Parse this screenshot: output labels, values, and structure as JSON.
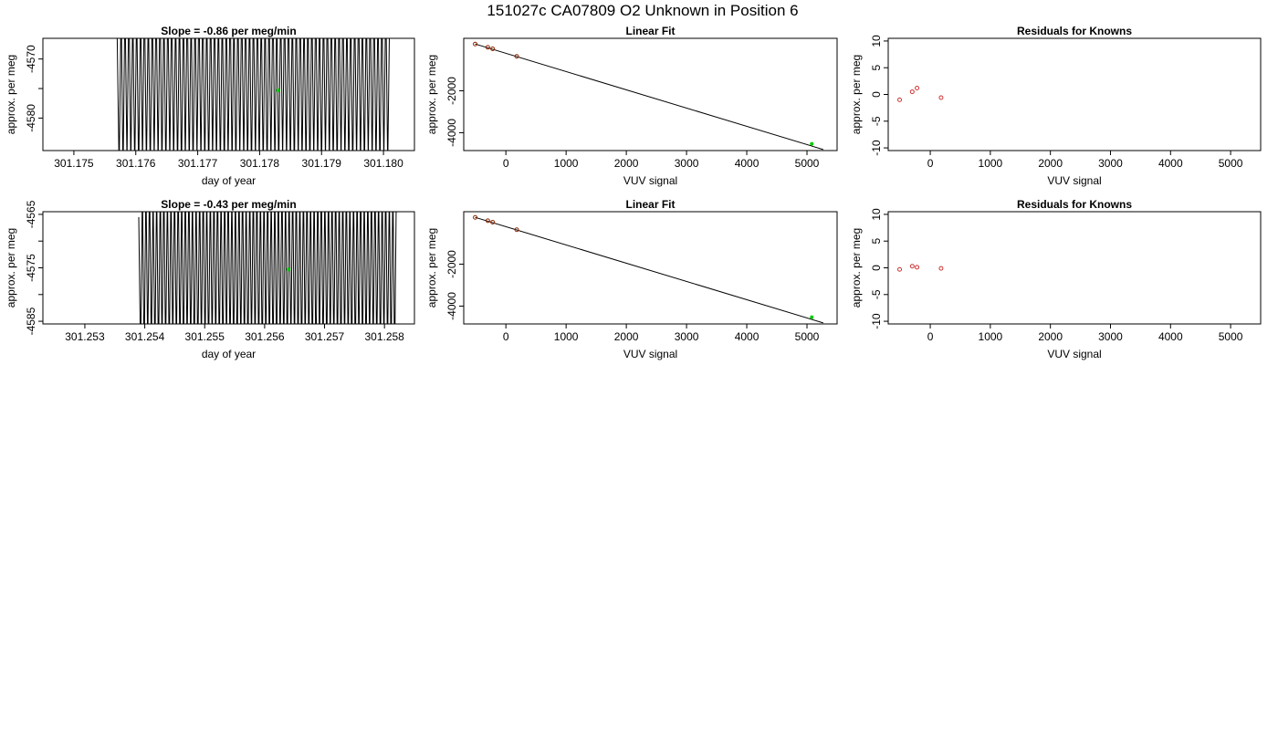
{
  "figure_title": "151027c     CA07809   O2 Unknown in Position  6",
  "colors": {
    "line": "#000000",
    "fit_point": "#8b2500",
    "unknown_point": "#00cc00",
    "residual_point": "#cd3333"
  },
  "chart_data": [
    {
      "id": "r1-timeseries",
      "type": "line",
      "title": "Slope =  -0.86  per meg/min",
      "xlabel": "day of year",
      "ylabel": "approx. per meg",
      "xlim": [
        301.1745,
        301.1805
      ],
      "ylim": [
        -4585.5,
        -4566.5
      ],
      "xticks": [
        301.175,
        301.176,
        301.177,
        301.178,
        301.179,
        301.18
      ],
      "xtick_labels": [
        "301.175",
        "301.176",
        "301.177",
        "301.178",
        "301.179",
        "301.180"
      ],
      "yticks": [
        -4570,
        -4575,
        -4580
      ],
      "ytick_labels": [
        "-4570",
        "",
        "-4580"
      ],
      "x_start": 301.1757,
      "x_end": 301.1801,
      "n_cycles": 70,
      "baseline": -4574.2,
      "amplitude": 16,
      "start_level": -4566.5,
      "marker": {
        "x": 301.1783,
        "y": -4575.3
      }
    },
    {
      "id": "r1-linearfit",
      "type": "scatter",
      "title": "Linear Fit",
      "xlabel": "VUV signal",
      "ylabel": "approx. per meg",
      "xlim": [
        -700,
        5500
      ],
      "ylim": [
        -4850,
        500
      ],
      "xticks": [
        0,
        1000,
        2000,
        3000,
        4000,
        5000
      ],
      "xtick_labels": [
        "0",
        "1000",
        "2000",
        "3000",
        "4000",
        "5000"
      ],
      "yticks": [
        -2000,
        -4000
      ],
      "ytick_labels": [
        "-2000",
        "-4000"
      ],
      "fit_line": {
        "x": [
          -510,
          5270
        ],
        "y": [
          230,
          -4800
        ]
      },
      "points": [
        {
          "x": -510,
          "y": 230
        },
        {
          "x": -300,
          "y": 70
        },
        {
          "x": -220,
          "y": 0
        },
        {
          "x": 180,
          "y": -360
        }
      ],
      "unknown": {
        "x": 5080,
        "y": -4530
      }
    },
    {
      "id": "r1-residuals",
      "type": "scatter",
      "title": "Residuals for Knowns",
      "xlabel": "VUV signal",
      "ylabel": "approx. per meg",
      "xlim": [
        -700,
        5500
      ],
      "ylim": [
        -10.5,
        10.5
      ],
      "xticks": [
        0,
        1000,
        2000,
        3000,
        4000,
        5000
      ],
      "xtick_labels": [
        "0",
        "1000",
        "2000",
        "3000",
        "4000",
        "5000"
      ],
      "yticks": [
        10,
        5,
        0,
        -5,
        -10
      ],
      "ytick_labels": [
        "10",
        "5",
        "0",
        "-5",
        "-10"
      ],
      "points": [
        {
          "x": -510,
          "y": -1.0
        },
        {
          "x": -300,
          "y": 0.5
        },
        {
          "x": -220,
          "y": 1.2
        },
        {
          "x": 180,
          "y": -0.6
        }
      ]
    },
    {
      "id": "r2-timeseries",
      "type": "line",
      "title": "Slope =  -0.43  per meg/min",
      "xlabel": "day of year",
      "ylabel": "approx. per meg",
      "xlim": [
        301.2523,
        301.2585
      ],
      "ylim": [
        -4585.5,
        -4564.5
      ],
      "xticks": [
        301.253,
        301.254,
        301.255,
        301.256,
        301.257,
        301.258
      ],
      "xtick_labels": [
        "301.253",
        "301.254",
        "301.255",
        "301.256",
        "301.257",
        "301.258"
      ],
      "yticks": [
        -4565,
        -4570,
        -4575,
        -4580,
        -4585
      ],
      "ytick_labels": [
        "-4565",
        "",
        "-4575",
        "",
        "-4585"
      ],
      "x_start": 301.2539,
      "x_end": 301.2582,
      "n_cycles": 72,
      "baseline": -4575.2,
      "amplitude": 18,
      "start_level": -4565.5,
      "marker": {
        "x": 301.2564,
        "y": -4575.3
      }
    },
    {
      "id": "r2-linearfit",
      "type": "scatter",
      "title": "Linear Fit",
      "xlabel": "VUV signal",
      "ylabel": "approx. per meg",
      "xlim": [
        -700,
        5500
      ],
      "ylim": [
        -4850,
        500
      ],
      "xticks": [
        0,
        1000,
        2000,
        3000,
        4000,
        5000
      ],
      "xtick_labels": [
        "0",
        "1000",
        "2000",
        "3000",
        "4000",
        "5000"
      ],
      "yticks": [
        -2000,
        -4000
      ],
      "ytick_labels": [
        "-2000",
        "-4000"
      ],
      "fit_line": {
        "x": [
          -510,
          5270
        ],
        "y": [
          230,
          -4800
        ]
      },
      "points": [
        {
          "x": -510,
          "y": 230
        },
        {
          "x": -300,
          "y": 70
        },
        {
          "x": -220,
          "y": 0
        },
        {
          "x": 180,
          "y": -360
        }
      ],
      "unknown": {
        "x": 5080,
        "y": -4530
      }
    },
    {
      "id": "r2-residuals",
      "type": "scatter",
      "title": "Residuals for Knowns",
      "xlabel": "VUV signal",
      "ylabel": "approx. per meg",
      "xlim": [
        -700,
        5500
      ],
      "ylim": [
        -10.5,
        10.5
      ],
      "xticks": [
        0,
        1000,
        2000,
        3000,
        4000,
        5000
      ],
      "xtick_labels": [
        "0",
        "1000",
        "2000",
        "3000",
        "4000",
        "5000"
      ],
      "yticks": [
        10,
        5,
        0,
        -5,
        -10
      ],
      "ytick_labels": [
        "10",
        "5",
        "0",
        "-5",
        "-10"
      ],
      "points": [
        {
          "x": -510,
          "y": -0.3
        },
        {
          "x": -300,
          "y": 0.3
        },
        {
          "x": -220,
          "y": 0.1
        },
        {
          "x": 180,
          "y": -0.1
        }
      ]
    }
  ]
}
